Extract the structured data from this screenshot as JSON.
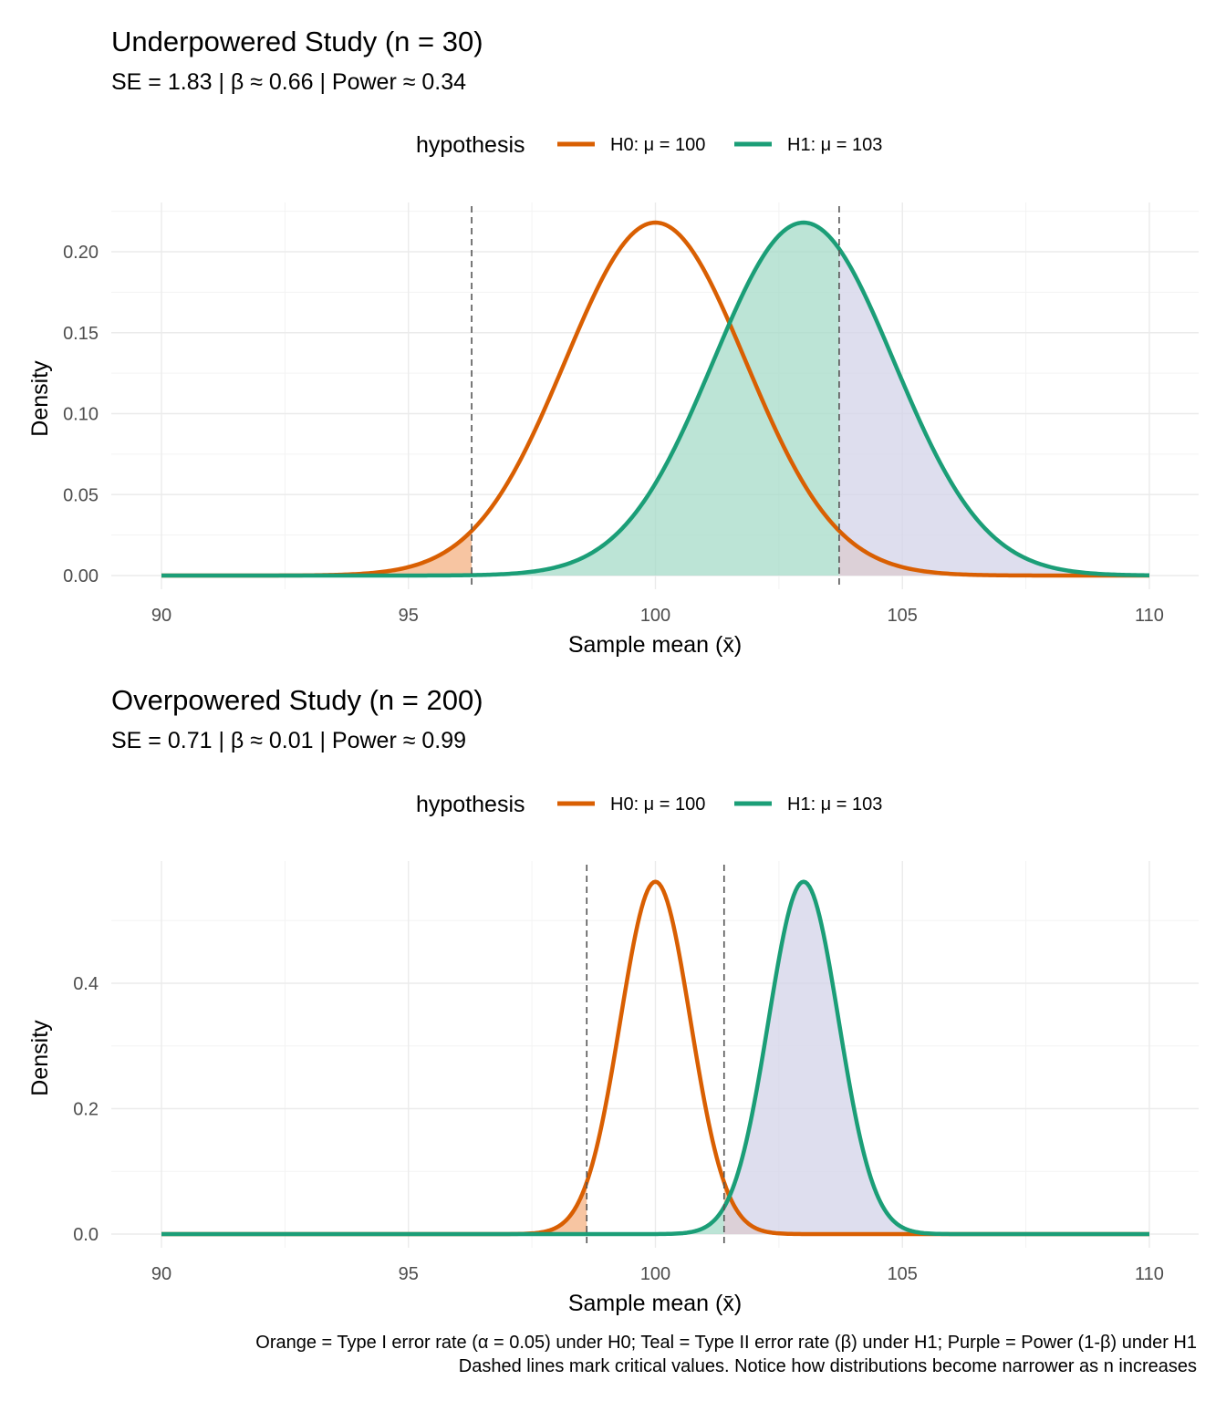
{
  "chart_data": [
    {
      "type": "area",
      "title": "Underpowered Study (n = 30)",
      "subtitle": "SE = 1.83 | β ≈ 0.66 | Power ≈ 0.34",
      "xlabel": "Sample mean (x̄)",
      "ylabel": "Density",
      "xlim": [
        90,
        110
      ],
      "ylim": [
        0,
        0.225
      ],
      "x_ticks": [
        90,
        95,
        100,
        105,
        110
      ],
      "x_tick_labels": [
        "90",
        "95",
        "100",
        "105",
        "110"
      ],
      "y_ticks": [
        0,
        0.05,
        0.1,
        0.15,
        0.2
      ],
      "y_tick_labels": [
        "0.00",
        "0.05",
        "0.10",
        "0.15",
        "0.20"
      ],
      "legend": {
        "title": "hypothesis",
        "position": "top",
        "entries": [
          "H0: μ = 100",
          "H1: μ = 103"
        ]
      },
      "series": [
        {
          "name": "H0: μ = 100",
          "distribution": "normal",
          "mean": 100,
          "sd": 1.83,
          "peak_density": 0.22,
          "color": "#D95F02"
        },
        {
          "name": "H1: μ = 103",
          "distribution": "normal",
          "mean": 103,
          "sd": 1.83,
          "peak_density": 0.22,
          "color": "#1B9E77"
        }
      ],
      "critical_values": [
        96.28,
        103.72
      ],
      "shaded_regions": [
        {
          "region": "type_i_error",
          "under": "H0",
          "from": 90,
          "to": 96.28,
          "color": "#F4B183"
        },
        {
          "region": "type_i_error",
          "under": "H0",
          "from": 103.72,
          "to": 110,
          "color": "#F4B183"
        },
        {
          "region": "type_ii_error",
          "under": "H1",
          "from": 96.28,
          "to": 103.72,
          "color": "#A6DBC8"
        },
        {
          "region": "power",
          "under": "H1",
          "from": 103.72,
          "to": 110,
          "color": "#D3D3E8"
        }
      ],
      "grid": true
    },
    {
      "type": "area",
      "title": "Overpowered Study (n = 200)",
      "subtitle": "SE = 0.71 | β ≈ 0.01 | Power ≈ 0.99",
      "xlabel": "Sample mean (x̄)",
      "ylabel": "Density",
      "xlim": [
        90,
        110
      ],
      "ylim": [
        0,
        0.57
      ],
      "x_ticks": [
        90,
        95,
        100,
        105,
        110
      ],
      "x_tick_labels": [
        "90",
        "95",
        "100",
        "105",
        "110"
      ],
      "y_ticks": [
        0,
        0.2,
        0.4
      ],
      "y_tick_labels": [
        "0.0",
        "0.2",
        "0.4"
      ],
      "legend": {
        "title": "hypothesis",
        "position": "top",
        "entries": [
          "H0: μ = 100",
          "H1: μ = 103"
        ]
      },
      "series": [
        {
          "name": "H0: μ = 100",
          "distribution": "normal",
          "mean": 100,
          "sd": 0.71,
          "peak_density": 0.56,
          "color": "#D95F02"
        },
        {
          "name": "H1: μ = 103",
          "distribution": "normal",
          "mean": 103,
          "sd": 0.71,
          "peak_density": 0.56,
          "color": "#1B9E77"
        }
      ],
      "critical_values": [
        98.61,
        101.39
      ],
      "shaded_regions": [
        {
          "region": "type_i_error",
          "under": "H0",
          "from": 90,
          "to": 98.61,
          "color": "#F4B183"
        },
        {
          "region": "type_i_error",
          "under": "H0",
          "from": 101.39,
          "to": 110,
          "color": "#F4B183"
        },
        {
          "region": "type_ii_error",
          "under": "H1",
          "from": 98.61,
          "to": 101.39,
          "color": "#A6DBC8"
        },
        {
          "region": "power",
          "under": "H1",
          "from": 101.39,
          "to": 110,
          "color": "#D3D3E8"
        }
      ],
      "grid": true
    }
  ],
  "caption": {
    "line1": "Orange = Type I error rate (α = 0.05) under H0; Teal = Type II error rate (β) under H1; Purple = Power (1-β) under H1",
    "line2": "Dashed lines mark critical values. Notice how distributions become narrower as n increases"
  }
}
